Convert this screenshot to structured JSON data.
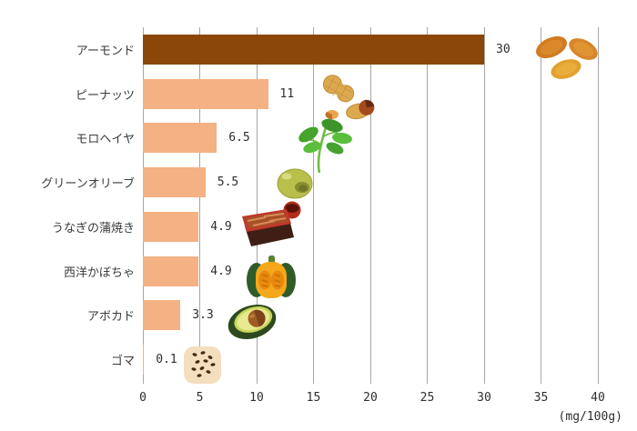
{
  "chart_data": {
    "type": "bar",
    "orientation": "horizontal",
    "categories": [
      "アーモンド",
      "ピーナッツ",
      "モロヘイヤ",
      "グリーンオリーブ",
      "うなぎの蒲焼き",
      "西洋かぼちゃ",
      "アボカド",
      "ゴマ"
    ],
    "values": [
      30,
      11,
      6.5,
      5.5,
      4.9,
      4.9,
      3.3,
      0.1
    ],
    "value_labels": [
      "30",
      "11",
      "6.5",
      "5.5",
      "4.9",
      "4.9",
      "3.3",
      "0.1"
    ],
    "highlight_index": 0,
    "xlabel": "(mg/100g)",
    "x_ticks": [
      "0",
      "5",
      "10",
      "15",
      "20",
      "25",
      "30",
      "35",
      "40"
    ],
    "xlim": [
      0,
      40
    ],
    "grid": true,
    "legend": "none",
    "colors": {
      "bar_highlight": "#8B4708",
      "bar_default": "#F4B183",
      "gridline": "#A6A6A6",
      "text": "#2E2E2E",
      "background": "#FFFFFF"
    },
    "icons": [
      "almond",
      "peanut",
      "molokheiya-leaves",
      "green-olive",
      "unagi-kabayaki",
      "kabocha-pumpkin",
      "avocado",
      "sesame"
    ]
  }
}
